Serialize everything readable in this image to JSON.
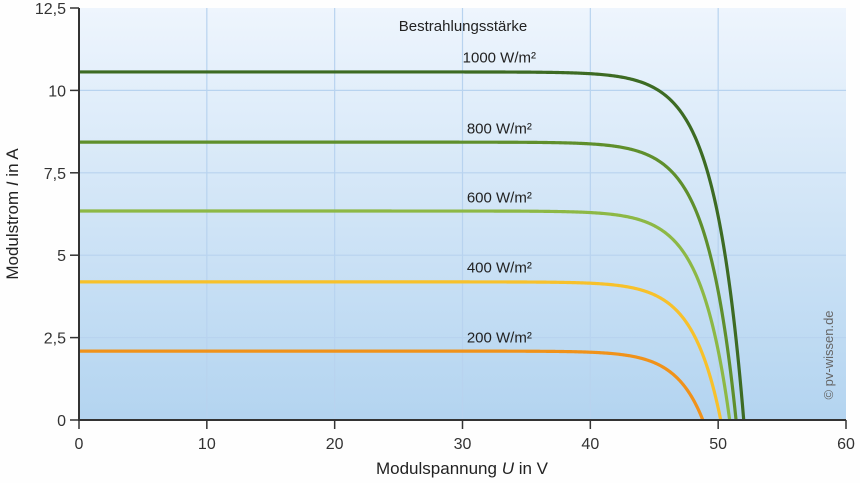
{
  "chart_data": {
    "type": "line",
    "title": "",
    "legend_title": "Bestrahlungsstärke",
    "xlabel_prefix": "Modulspannung ",
    "xlabel_var": "U",
    "xlabel_suffix": " in V",
    "ylabel_prefix": "Modulstrom ",
    "ylabel_var": "I",
    "ylabel_suffix": " in A",
    "xlim": [
      0,
      60
    ],
    "ylim": [
      0,
      12.5
    ],
    "grid": true,
    "x_ticks": [
      0,
      10,
      20,
      30,
      40,
      50,
      60
    ],
    "x_tick_labels": [
      "0",
      "10",
      "20",
      "30",
      "40",
      "50",
      "60"
    ],
    "y_ticks": [
      0,
      2.5,
      5,
      7.5,
      10,
      12.5
    ],
    "y_tick_labels": [
      "0",
      "2,5",
      "5",
      "7,5",
      "10",
      "12,5"
    ],
    "x": [
      0,
      10,
      20,
      30,
      35,
      40,
      42,
      44,
      45,
      46,
      47,
      48,
      49,
      50,
      51,
      52
    ],
    "series": [
      {
        "name": "1000 W/m²",
        "color": "#3d6b23",
        "isc": 10.56,
        "voc": 52.0,
        "values": [
          10.56,
          10.56,
          10.56,
          10.54,
          10.52,
          10.45,
          10.37,
          10.18,
          10.0,
          9.68,
          9.12,
          8.2,
          6.72,
          4.55,
          1.86,
          0
        ]
      },
      {
        "name": "800 W/m²",
        "color": "#5f8f2c",
        "isc": 8.43,
        "voc": 51.4,
        "values": [
          8.43,
          8.43,
          8.43,
          8.41,
          8.39,
          8.33,
          8.23,
          8.03,
          7.83,
          7.5,
          6.97,
          6.08,
          4.71,
          2.69,
          0.48,
          0
        ]
      },
      {
        "name": "600 W/m²",
        "color": "#8db845",
        "isc": 6.34,
        "voc": 50.9,
        "values": [
          6.34,
          6.34,
          6.34,
          6.33,
          6.31,
          6.24,
          6.15,
          5.96,
          5.78,
          5.48,
          5.0,
          4.23,
          3.03,
          1.32,
          0,
          0
        ]
      },
      {
        "name": "400 W/m²",
        "color": "#f7c12b",
        "isc": 4.19,
        "voc": 50.2,
        "values": [
          4.19,
          4.19,
          4.19,
          4.18,
          4.16,
          4.09,
          4.0,
          3.82,
          3.66,
          3.4,
          2.98,
          2.34,
          1.35,
          0.07,
          0,
          0
        ]
      },
      {
        "name": "200 W/m²",
        "color": "#f0921a",
        "isc": 2.09,
        "voc": 48.8,
        "values": [
          2.09,
          2.09,
          2.09,
          2.08,
          2.06,
          2.0,
          1.92,
          1.76,
          1.63,
          1.42,
          1.09,
          0.59,
          0,
          0,
          0,
          0
        ]
      }
    ],
    "annotations": [
      {
        "text": "1000 W/m²",
        "x": 30.3,
        "y": 11.0
      },
      {
        "text": "800 W/m²",
        "x": 30.3,
        "y": 8.85
      },
      {
        "text": "600 W/m²",
        "x": 30.3,
        "y": 6.75
      },
      {
        "text": "400 W/m²",
        "x": 30.3,
        "y": 4.62
      },
      {
        "text": "200 W/m²",
        "x": 30.3,
        "y": 2.5
      }
    ]
  },
  "copyright": "© pv-wissen.de",
  "colors": {
    "background_top": "#eef5fd",
    "background_bottom": "#b3d4f0",
    "grid": "#b8d3ef",
    "axis": "#333333"
  }
}
